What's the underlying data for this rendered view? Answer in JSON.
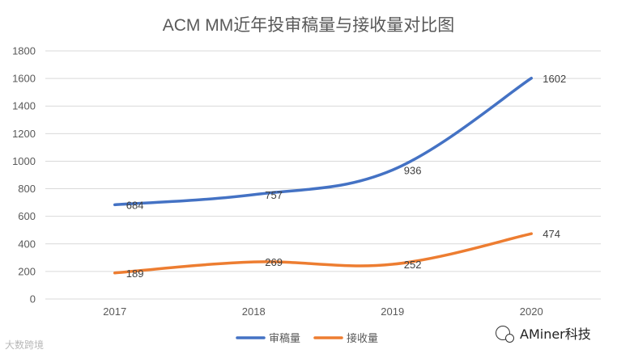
{
  "chart_data": {
    "type": "line",
    "title": "ACM MM近年投审稿量与接收量对比图",
    "categories": [
      "2017",
      "2018",
      "2019",
      "2020"
    ],
    "ylim": [
      0,
      1800
    ],
    "yticks": [
      0,
      200,
      400,
      600,
      800,
      1000,
      1200,
      1400,
      1600,
      1800
    ],
    "grid": true,
    "legend_position": "bottom",
    "series": [
      {
        "name": "审稿量",
        "color": "#4472c4",
        "values": [
          684,
          757,
          936,
          1602
        ]
      },
      {
        "name": "接收量",
        "color": "#ed7d31",
        "values": [
          189,
          269,
          252,
          474
        ]
      }
    ]
  },
  "watermarks": {
    "left": "大数跨境",
    "right": "AMiner科技"
  }
}
